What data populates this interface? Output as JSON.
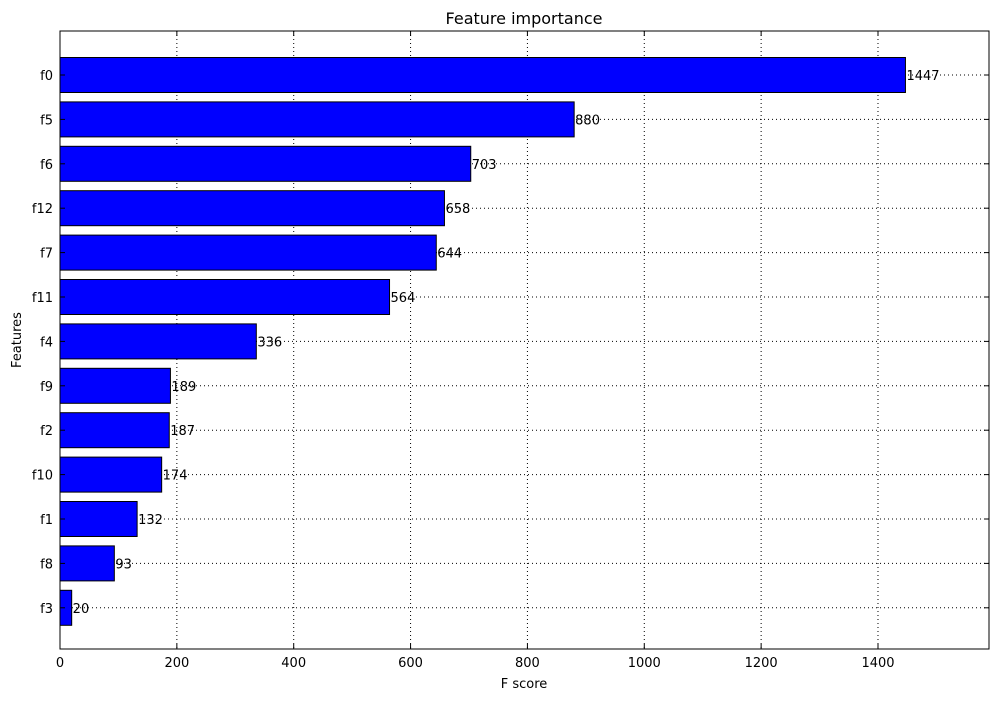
{
  "chart_data": {
    "type": "bar",
    "orientation": "horizontal",
    "title": "Feature importance",
    "xlabel": "F score",
    "ylabel": "Features",
    "categories": [
      "f0",
      "f5",
      "f6",
      "f12",
      "f7",
      "f11",
      "f4",
      "f9",
      "f2",
      "f10",
      "f1",
      "f8",
      "f3"
    ],
    "values": [
      1447,
      880,
      703,
      658,
      644,
      564,
      336,
      189,
      187,
      174,
      132,
      93,
      20
    ],
    "xlim": [
      0,
      1590
    ],
    "xticks": [
      0,
      200,
      400,
      600,
      800,
      1000,
      1200,
      1400
    ],
    "grid": true,
    "bar_color": "#0000ff",
    "show_data_labels": true
  }
}
